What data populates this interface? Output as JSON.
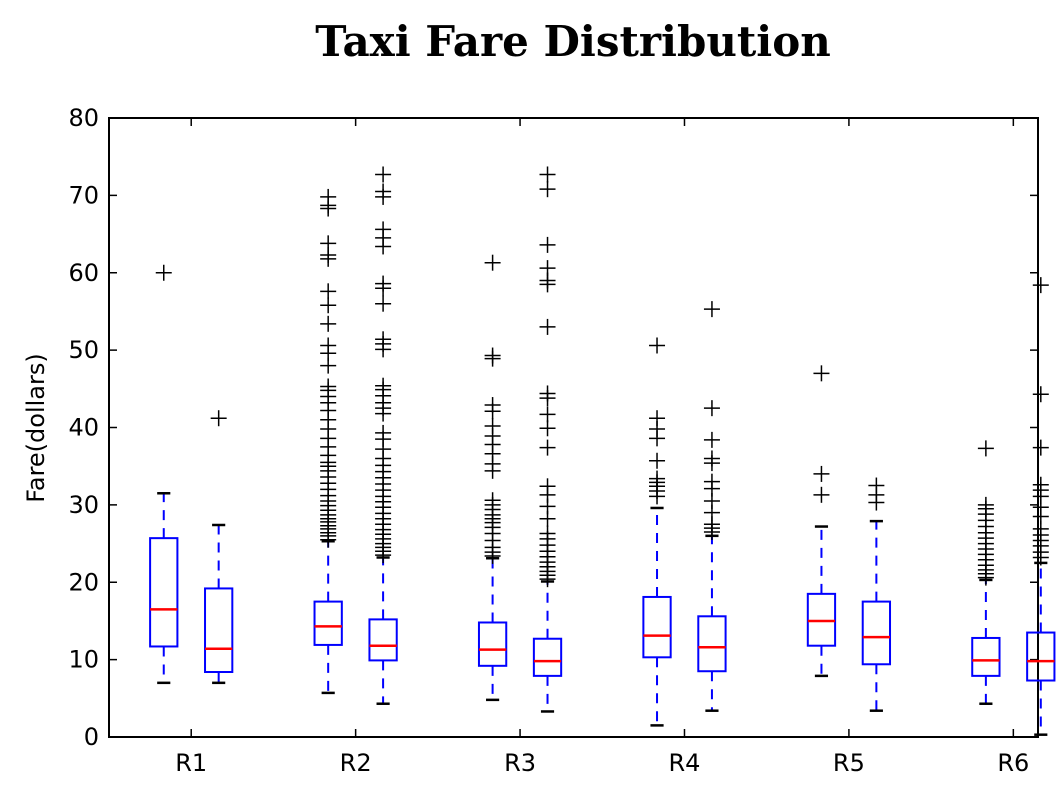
{
  "chart_data": {
    "type": "box",
    "title": "Taxi Fare Distribution",
    "xlabel": "",
    "ylabel": "Fare(dollars)",
    "ylim": [
      0,
      80
    ],
    "yticks": [
      0,
      10,
      20,
      30,
      40,
      50,
      60,
      70,
      80
    ],
    "categories": [
      "R1",
      "R2",
      "R3",
      "R4",
      "R5",
      "R6"
    ],
    "grid": false,
    "colors": {
      "box": "#0000ff",
      "median": "#ff0000",
      "cap": "#000000",
      "flier": "#000000"
    },
    "groups": [
      {
        "category": "R1",
        "boxes": [
          {
            "whislo": 7,
            "q1": 11.7,
            "med": 16.5,
            "q3": 25.7,
            "whishi": 31.5,
            "fliers": [
              60
            ]
          },
          {
            "whislo": 7,
            "q1": 8.4,
            "med": 11.4,
            "q3": 19.2,
            "whishi": 27.4,
            "fliers": [
              41.2
            ]
          }
        ]
      },
      {
        "category": "R2",
        "boxes": [
          {
            "whislo": 5.7,
            "q1": 11.9,
            "med": 14.3,
            "q3": 17.5,
            "whishi": 25.3,
            "fliers": [
              25.5,
              26,
              26.4,
              26.9,
              27.3,
              27.8,
              28.2,
              28.7,
              29.3,
              29.9,
              30.5,
              31.2,
              32,
              32.8,
              33.6,
              34.4,
              35,
              35.5,
              36.4,
              37.5,
              38.6,
              39.8,
              41,
              42.2,
              43.2,
              44,
              44.8,
              45.3,
              48,
              49.6,
              50.6,
              53.4,
              55.8,
              57.6,
              61.8,
              62.3,
              63.8,
              68.3,
              68.7,
              69.8
            ]
          },
          {
            "whislo": 4.3,
            "q1": 9.9,
            "med": 11.8,
            "q3": 15.2,
            "whishi": 23.2,
            "fliers": [
              23.5,
              24,
              24.5,
              25,
              25.6,
              26.2,
              26.8,
              27.5,
              28.2,
              28.9,
              29.7,
              30.4,
              31.1,
              31.9,
              32.7,
              33.5,
              34.3,
              35.1,
              36,
              37.2,
              38.5,
              39.3,
              41.8,
              42.5,
              43.2,
              44.1,
              44.9,
              45.4,
              50.1,
              50.8,
              51.4,
              56,
              58,
              58.6,
              63.4,
              64.5,
              65.6,
              69.8,
              70.5,
              72.7
            ]
          }
        ]
      },
      {
        "category": "R3",
        "boxes": [
          {
            "whislo": 4.8,
            "q1": 9.2,
            "med": 11.3,
            "q3": 14.8,
            "whishi": 23.1,
            "fliers": [
              23.4,
              23.9,
              24.5,
              25.4,
              26.3,
              27.1,
              27.7,
              28.2,
              28.7,
              29.4,
              30,
              30.6,
              34.4,
              35.3,
              36.6,
              37.8,
              38.9,
              40.2,
              42.1,
              42.9,
              48.9,
              49.3,
              61.3
            ]
          },
          {
            "whislo": 3.3,
            "q1": 7.9,
            "med": 9.8,
            "q3": 12.7,
            "whishi": 20.1,
            "fliers": [
              20.4,
              20.9,
              21.4,
              22,
              22.6,
              23.3,
              24,
              24.8,
              25.6,
              26.3,
              28.2,
              29.8,
              31.3,
              32.4,
              37.4,
              39.9,
              41.7,
              43.8,
              44.4,
              53,
              58.5,
              59,
              60.6,
              63.6,
              70.8,
              72.7
            ]
          }
        ]
      },
      {
        "category": "R4",
        "boxes": [
          {
            "whislo": 1.5,
            "q1": 10.3,
            "med": 13.1,
            "q3": 18.1,
            "whishi": 29.6,
            "fliers": [
              31.1,
              31.8,
              32.4,
              32.9,
              33.4,
              35.7,
              38.6,
              39.8,
              41.2,
              50.6
            ]
          },
          {
            "whislo": 3.4,
            "q1": 8.5,
            "med": 11.6,
            "q3": 15.6,
            "whishi": 26,
            "fliers": [
              26.5,
              27,
              27.5,
              29,
              30.5,
              32.1,
              33,
              35.4,
              36,
              38.4,
              42.5,
              55.3
            ]
          }
        ]
      },
      {
        "category": "R5",
        "boxes": [
          {
            "whislo": 7.9,
            "q1": 11.8,
            "med": 15.0,
            "q3": 18.5,
            "whishi": 27.2,
            "fliers": [
              31.3,
              34,
              47
            ]
          },
          {
            "whislo": 3.4,
            "q1": 9.4,
            "med": 12.9,
            "q3": 17.5,
            "whishi": 27.9,
            "fliers": [
              30.3,
              31.3,
              32.5
            ]
          }
        ]
      },
      {
        "category": "R6",
        "boxes": [
          {
            "whislo": 4.3,
            "q1": 7.9,
            "med": 9.9,
            "q3": 12.8,
            "whishi": 20.3,
            "fliers": [
              20.6,
              21.1,
              21.6,
              22.2,
              22.9,
              23.6,
              24.3,
              25,
              25.7,
              26.4,
              27.2,
              28,
              28.8,
              29.5,
              30,
              37.3
            ]
          },
          {
            "whislo": 0.3,
            "q1": 7.3,
            "med": 9.8,
            "q3": 13.5,
            "whishi": 22.5,
            "fliers": [
              23.2,
              23.9,
              24.7,
              25.4,
              26.1,
              26.9,
              28.5,
              29.7,
              31.1,
              31.9,
              32.6,
              37.4,
              44.3,
              58.4
            ]
          }
        ]
      }
    ]
  }
}
